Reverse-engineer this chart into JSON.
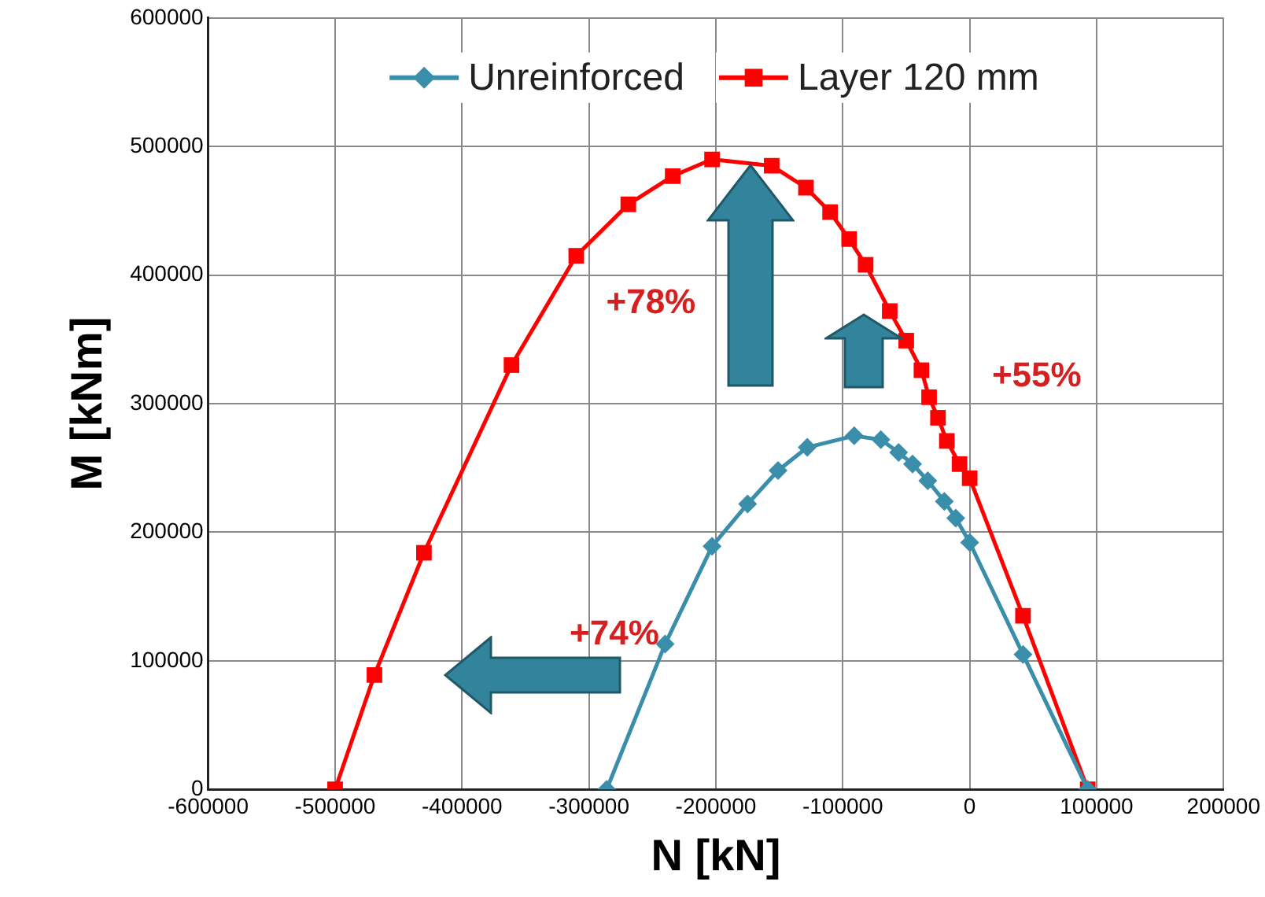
{
  "chart_data": {
    "type": "line",
    "xlabel": "N [kN]",
    "ylabel": "M [kNm]",
    "xlim": [
      -600000,
      200000
    ],
    "xticks": [
      -600000,
      -500000,
      -400000,
      -300000,
      -200000,
      -100000,
      0,
      100000,
      200000
    ],
    "ylim": [
      0,
      600000
    ],
    "yticks": [
      0,
      100000,
      200000,
      300000,
      400000,
      500000,
      600000
    ],
    "grid": true,
    "legend": "top",
    "series": [
      {
        "name": "Unreinforced",
        "color": "#3b8eaa",
        "marker": "diamond",
        "x": [
          -286000,
          -240000,
          -203000,
          -175000,
          -151000,
          -128000,
          -91000,
          -70000,
          -56000,
          -45000,
          -33000,
          -20000,
          -11000,
          0,
          42000,
          93000
        ],
        "values": [
          0,
          113000,
          189000,
          222000,
          248000,
          266000,
          275000,
          272000,
          262000,
          253000,
          240000,
          224000,
          211000,
          192000,
          105000,
          0
        ]
      },
      {
        "name": "Layer 120 mm",
        "color": "#ff0000",
        "marker": "square",
        "x": [
          -500000,
          -469000,
          -430000,
          -361000,
          -310000,
          -269000,
          -234000,
          -203000,
          -156000,
          -129000,
          -110000,
          -95000,
          -82000,
          -63000,
          -50000,
          -38000,
          -32000,
          -25000,
          -18000,
          -8000,
          0,
          42000,
          93000
        ],
        "values": [
          0,
          89000,
          184000,
          330000,
          415000,
          455000,
          477000,
          490000,
          485000,
          468000,
          449000,
          428000,
          408000,
          372000,
          349000,
          326000,
          305000,
          289000,
          271000,
          253000,
          242000,
          135000,
          0
        ]
      }
    ],
    "annotations": [
      "+78%",
      "+74%",
      "+55%"
    ]
  }
}
